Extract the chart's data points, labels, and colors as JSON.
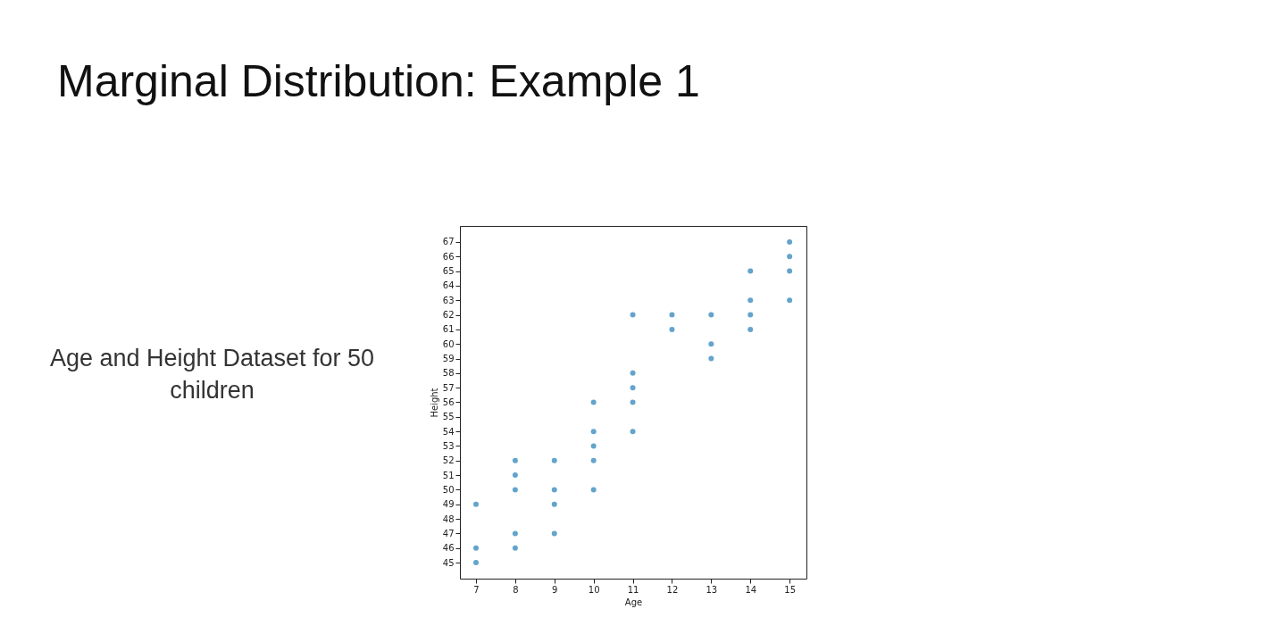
{
  "chart_data": {
    "type": "scatter",
    "title": "Marginal Distribution: Example 1",
    "subtitle": "Age and Height Dataset for 50 children",
    "xlabel": "Age",
    "ylabel": "Height",
    "x": [
      7,
      7,
      7,
      8,
      8,
      8,
      8,
      8,
      9,
      9,
      9,
      9,
      10,
      10,
      10,
      10,
      10,
      11,
      11,
      11,
      11,
      11,
      12,
      12,
      13,
      13,
      13,
      14,
      14,
      14,
      14,
      15,
      15,
      15,
      15
    ],
    "values": [
      49,
      46,
      45,
      52,
      51,
      50,
      47,
      46,
      52,
      50,
      49,
      47,
      56,
      54,
      53,
      52,
      50,
      62,
      58,
      57,
      56,
      54,
      62,
      61,
      62,
      60,
      59,
      65,
      63,
      62,
      61,
      67,
      66,
      65,
      63
    ],
    "color": "#64a4cc",
    "marker": "circle",
    "grid": false,
    "xlim": [
      6.59,
      15.43
    ],
    "xticks": [
      7,
      8,
      9,
      10,
      11,
      12,
      13,
      14,
      15
    ],
    "ylim": [
      43.9,
      68.1
    ],
    "yticks": [
      45,
      46,
      47,
      48,
      49,
      50,
      51,
      52,
      53,
      54,
      55,
      56,
      57,
      58,
      59,
      60,
      61,
      62,
      63,
      64,
      65,
      66,
      67
    ]
  }
}
